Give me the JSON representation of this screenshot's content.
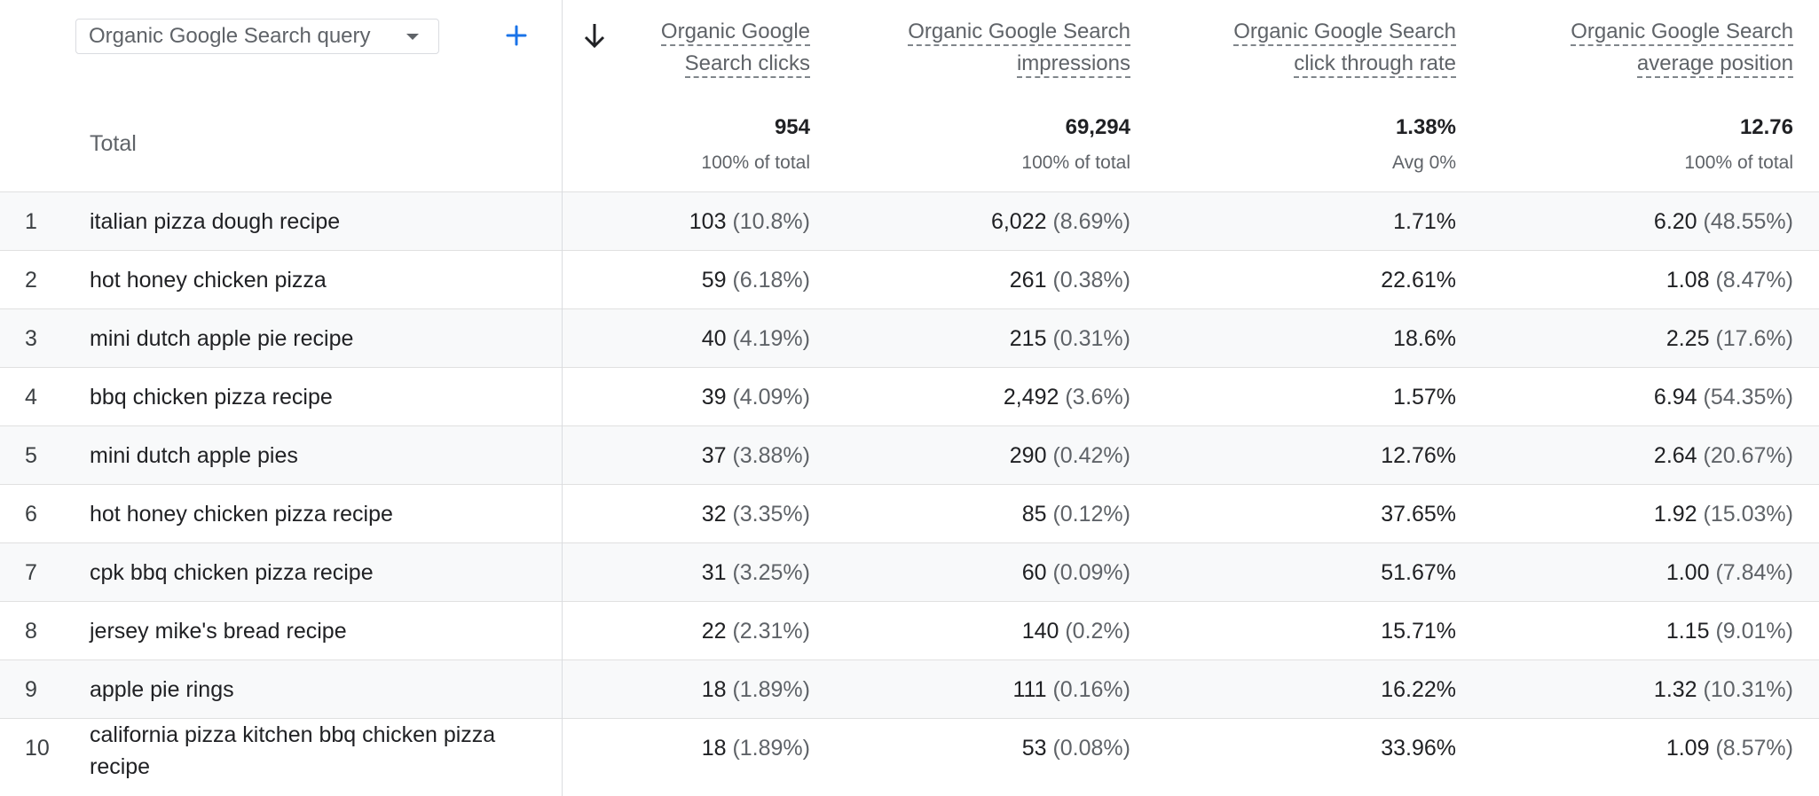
{
  "dimension": {
    "label": "Organic Google Search query"
  },
  "columns": [
    {
      "line1": "Organic Google",
      "line2": "Search clicks"
    },
    {
      "line1": "Organic Google Search",
      "line2": "impressions"
    },
    {
      "line1": "Organic Google Search",
      "line2": "click through rate"
    },
    {
      "line1": "Organic Google Search",
      "line2": "average position"
    }
  ],
  "totals": {
    "label": "Total",
    "values": [
      "954",
      "69,294",
      "1.38%",
      "12.76"
    ],
    "subs": [
      "100% of total",
      "100% of total",
      "Avg 0%",
      "100% of total"
    ]
  },
  "rows": [
    {
      "idx": "1",
      "query": "italian pizza dough recipe",
      "clicks": "103",
      "clicks_pct": "(10.8%)",
      "impr": "6,022",
      "impr_pct": "(8.69%)",
      "ctr": "1.71%",
      "pos": "6.20",
      "pos_pct": "(48.55%)"
    },
    {
      "idx": "2",
      "query": "hot honey chicken pizza",
      "clicks": "59",
      "clicks_pct": "(6.18%)",
      "impr": "261",
      "impr_pct": "(0.38%)",
      "ctr": "22.61%",
      "pos": "1.08",
      "pos_pct": "(8.47%)"
    },
    {
      "idx": "3",
      "query": "mini dutch apple pie recipe",
      "clicks": "40",
      "clicks_pct": "(4.19%)",
      "impr": "215",
      "impr_pct": "(0.31%)",
      "ctr": "18.6%",
      "pos": "2.25",
      "pos_pct": "(17.6%)"
    },
    {
      "idx": "4",
      "query": "bbq chicken pizza recipe",
      "clicks": "39",
      "clicks_pct": "(4.09%)",
      "impr": "2,492",
      "impr_pct": "(3.6%)",
      "ctr": "1.57%",
      "pos": "6.94",
      "pos_pct": "(54.35%)"
    },
    {
      "idx": "5",
      "query": "mini dutch apple pies",
      "clicks": "37",
      "clicks_pct": "(3.88%)",
      "impr": "290",
      "impr_pct": "(0.42%)",
      "ctr": "12.76%",
      "pos": "2.64",
      "pos_pct": "(20.67%)"
    },
    {
      "idx": "6",
      "query": "hot honey chicken pizza recipe",
      "clicks": "32",
      "clicks_pct": "(3.35%)",
      "impr": "85",
      "impr_pct": "(0.12%)",
      "ctr": "37.65%",
      "pos": "1.92",
      "pos_pct": "(15.03%)"
    },
    {
      "idx": "7",
      "query": "cpk bbq chicken pizza recipe",
      "clicks": "31",
      "clicks_pct": "(3.25%)",
      "impr": "60",
      "impr_pct": "(0.09%)",
      "ctr": "51.67%",
      "pos": "1.00",
      "pos_pct": "(7.84%)"
    },
    {
      "idx": "8",
      "query": "jersey mike's bread recipe",
      "clicks": "22",
      "clicks_pct": "(2.31%)",
      "impr": "140",
      "impr_pct": "(0.2%)",
      "ctr": "15.71%",
      "pos": "1.15",
      "pos_pct": "(9.01%)"
    },
    {
      "idx": "9",
      "query": "apple pie rings",
      "clicks": "18",
      "clicks_pct": "(1.89%)",
      "impr": "111",
      "impr_pct": "(0.16%)",
      "ctr": "16.22%",
      "pos": "1.32",
      "pos_pct": "(10.31%)"
    },
    {
      "idx": "10",
      "query": "california pizza kitchen bbq chicken pizza recipe",
      "query_line1": "california pizza kitchen bbq chicken pizza",
      "query_line2": "recipe",
      "clicks": "18",
      "clicks_pct": "(1.89%)",
      "impr": "53",
      "impr_pct": "(0.08%)",
      "ctr": "33.96%",
      "pos": "1.09",
      "pos_pct": "(8.57%)"
    }
  ],
  "icons": {
    "add": "plus-icon",
    "sort": "arrow-down-icon",
    "dropdown": "caret-down-icon"
  },
  "colors": {
    "accent": "#1a73e8"
  }
}
